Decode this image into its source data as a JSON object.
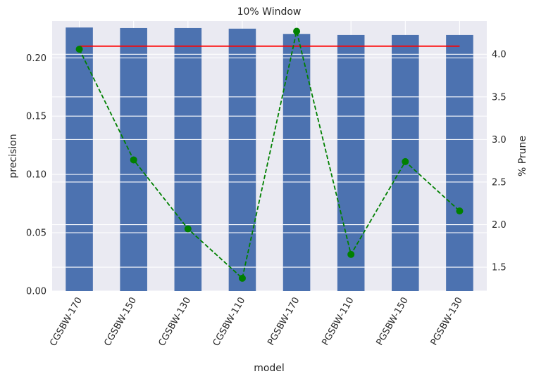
{
  "chart_data": {
    "type": "bar",
    "title": "10% Window",
    "xlabel": "model",
    "ylabel": "precision",
    "ylabel_right": "% Prune",
    "categories": [
      "CGSBW-170",
      "CGSBW-150",
      "CGSBW-130",
      "CGSBW-110",
      "PGSBW-170",
      "PGSBW-110",
      "PGSBW-150",
      "PGSBW-130"
    ],
    "ylim": [
      0,
      0.2315
    ],
    "yticks": [
      0.0,
      0.05,
      0.1,
      0.15,
      0.2
    ],
    "ytick_labels": [
      "0.00",
      "0.05",
      "0.10",
      "0.15",
      "0.20"
    ],
    "y2lim": [
      1.22,
      4.39
    ],
    "y2ticks": [
      1.5,
      2.0,
      2.5,
      3.0,
      3.5,
      4.0
    ],
    "y2tick_labels": [
      "1.5",
      "2.0",
      "2.5",
      "3.0",
      "3.5",
      "4.0"
    ],
    "grid": true,
    "series": [
      {
        "type": "bar",
        "axis": "left",
        "color": "#4c72b0",
        "values": [
          0.226,
          0.2255,
          0.2255,
          0.225,
          0.2205,
          0.2195,
          0.2195,
          0.2195
        ]
      },
      {
        "type": "line",
        "axis": "left",
        "color": "#ff0000",
        "linestyle": "solid",
        "values": [
          0.21,
          0.21,
          0.21,
          0.21,
          0.21,
          0.21,
          0.21,
          0.21
        ]
      },
      {
        "type": "line",
        "axis": "right",
        "color": "#008000",
        "linestyle": "dashed",
        "marker": "circle",
        "values": [
          4.06,
          2.76,
          1.95,
          1.37,
          4.27,
          1.65,
          2.74,
          2.16
        ]
      }
    ]
  }
}
